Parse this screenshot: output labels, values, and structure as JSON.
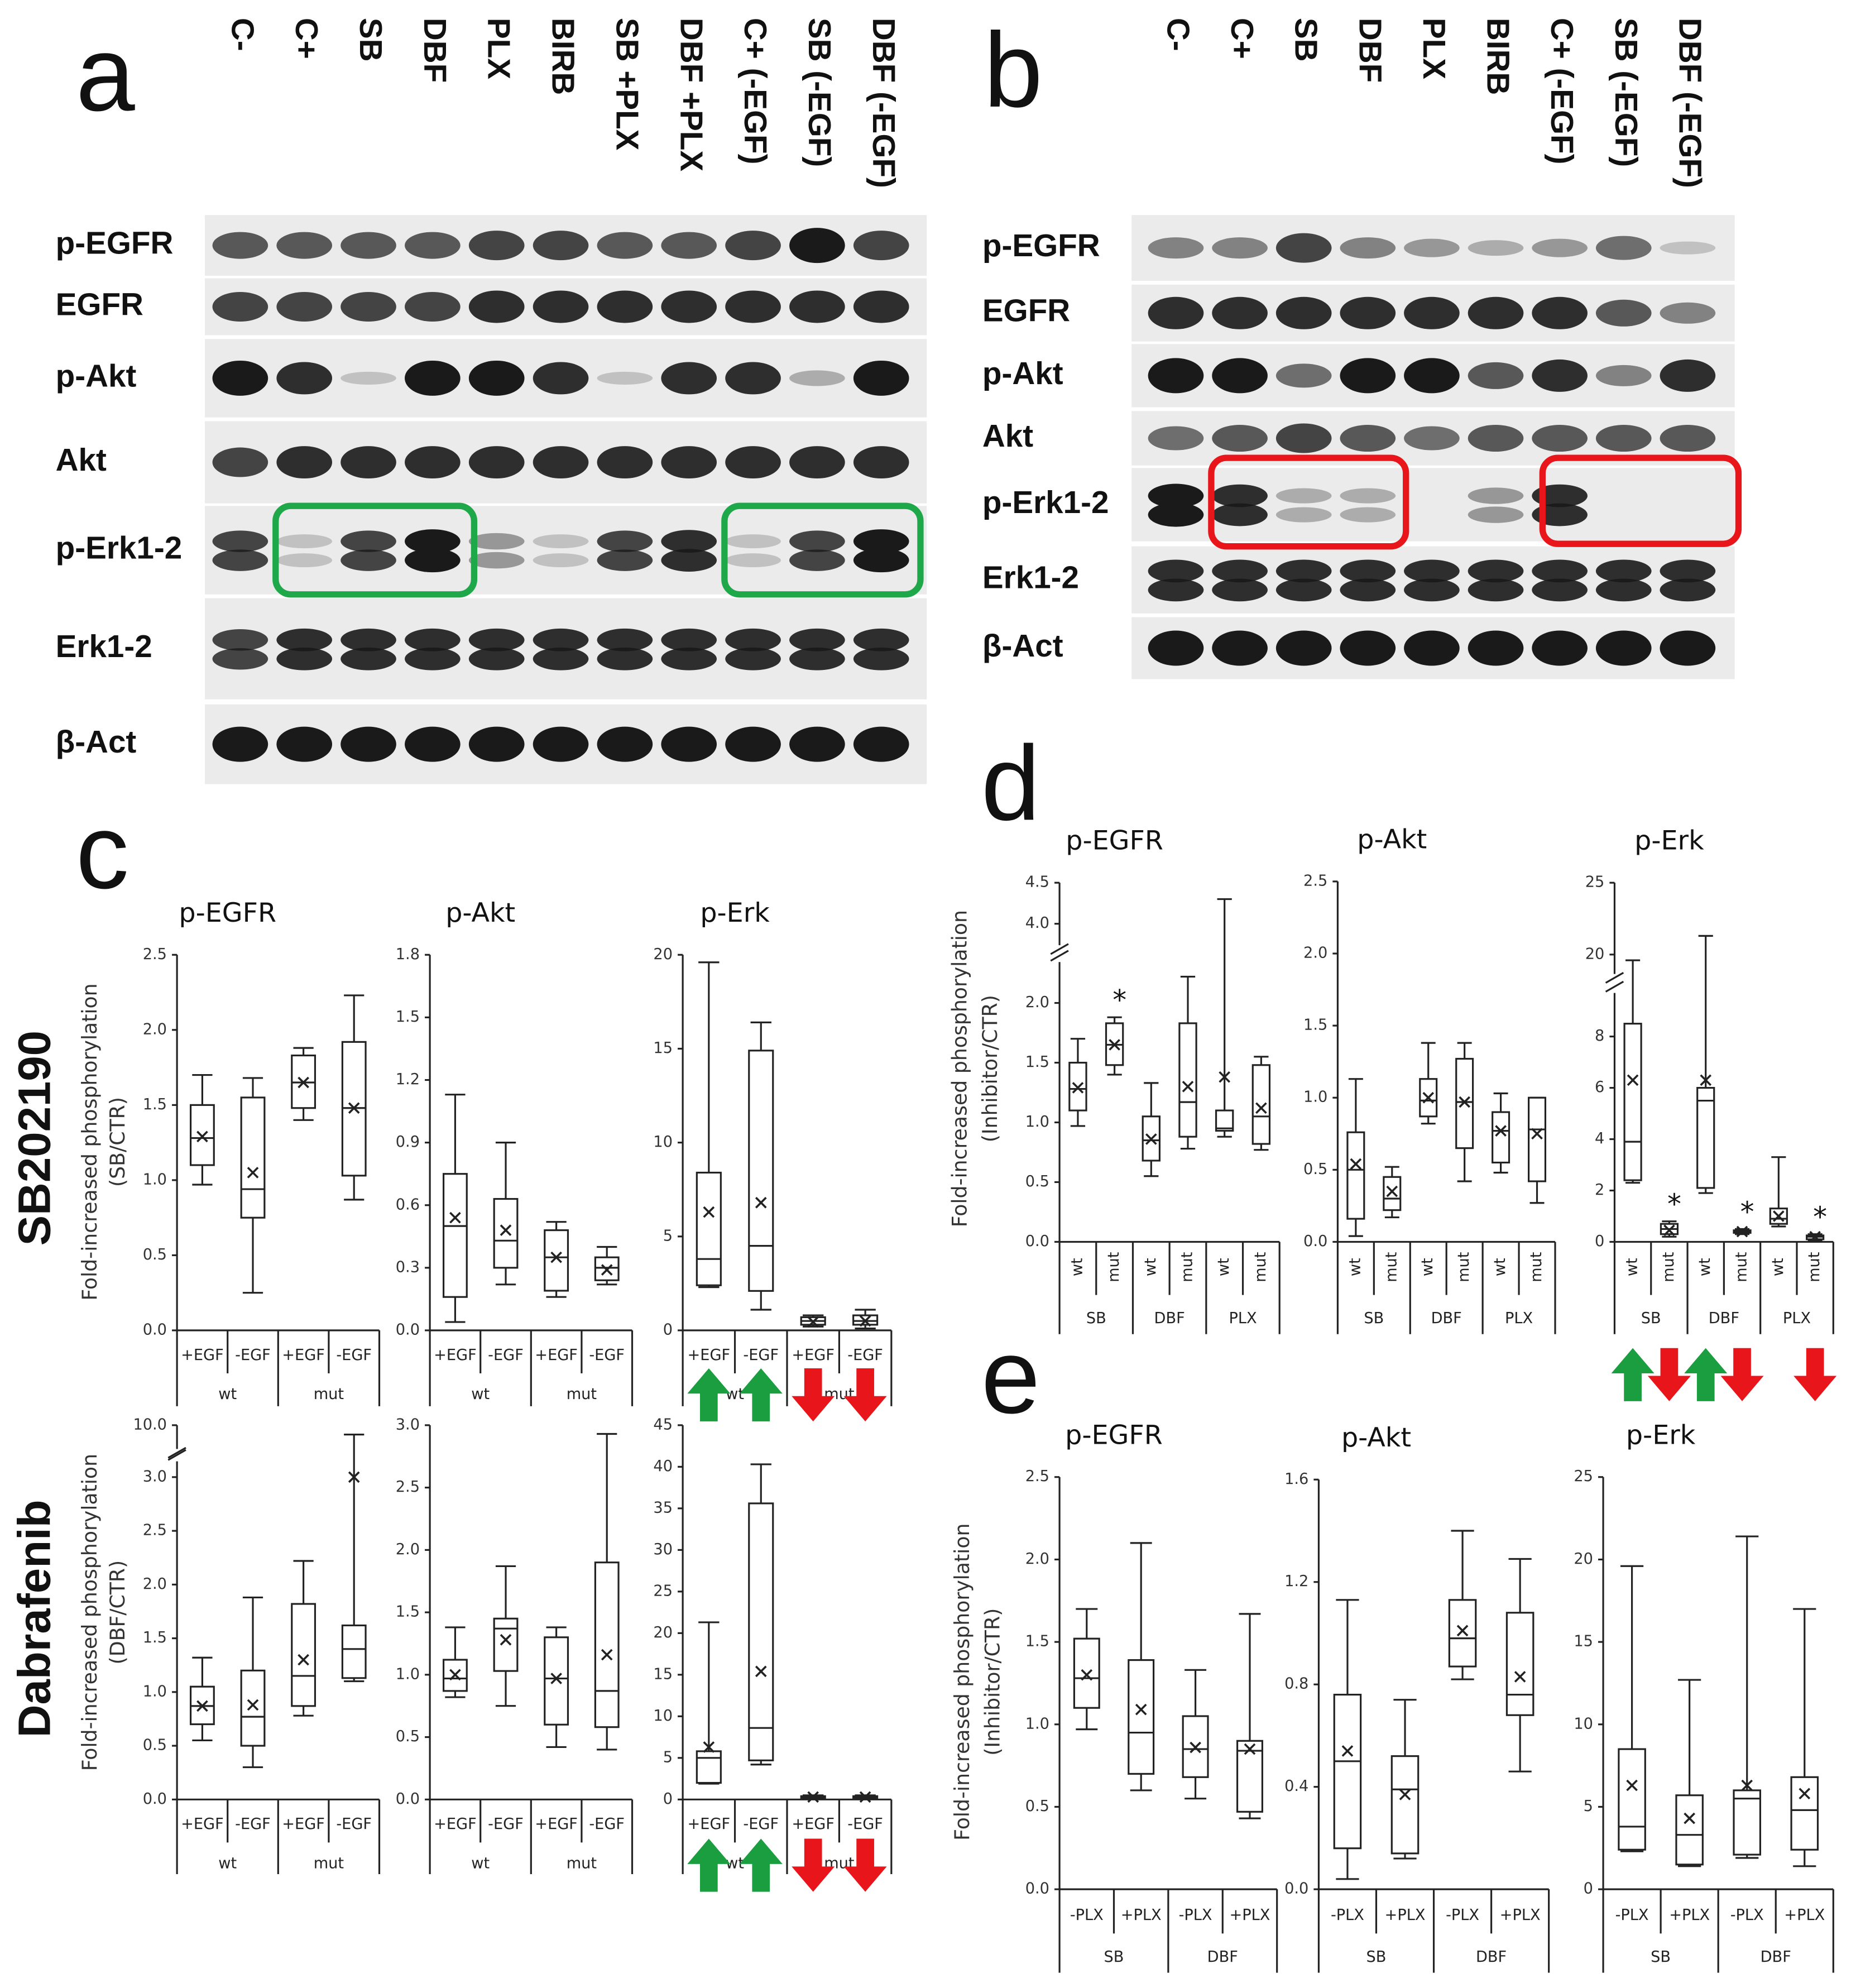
{
  "blots": [
    {
      "label": "a",
      "lanes": [
        "C-",
        "C+",
        "SB",
        "DBF",
        "PLX",
        "BIRB",
        "SB +PLX",
        "DBF +PLX",
        "C+ (-EGF)",
        "SB (-EGF)",
        "DBF (-EGF)"
      ],
      "rows": [
        "p-EGFR",
        "EGFR",
        "p-Akt",
        "Akt",
        "p-Erk1-2",
        "Erk1-2",
        "β-Act"
      ]
    },
    {
      "label": "b",
      "lanes": [
        "C-",
        "C+",
        "SB",
        "DBF",
        "PLX",
        "BIRB",
        "C+ (-EGF)",
        "SB (-EGF)",
        "DBF (-EGF)"
      ],
      "rows": [
        "p-EGFR",
        "EGFR",
        "p-Akt",
        "Akt",
        "p-Erk1-2",
        "Erk1-2",
        "β-Act"
      ]
    }
  ],
  "panels": [
    "c",
    "d",
    "e"
  ],
  "side_labels": [
    "SB202190",
    "Dabrafenib"
  ],
  "chart_data": [
    {
      "type": "box",
      "title": "p-EGFR",
      "ylabel": [
        "Fold-increased phosphorylation",
        "(SB/CTR)"
      ],
      "categories": [
        "+EGF",
        "-EGF",
        "+EGF",
        "-EGF"
      ],
      "groups": [
        "wt",
        "mut"
      ],
      "ylim": [
        0,
        2.5
      ],
      "yticks": [
        {
          "value": 0,
          "label": "0.0"
        },
        0.5,
        {
          "value": 1,
          "label": "1.0"
        },
        1.5,
        {
          "value": 2,
          "label": "2.0"
        },
        2.5
      ],
      "boxes": [
        {
          "min": 0.97,
          "q1": 1.1,
          "median": 1.28,
          "q3": 1.5,
          "max": 1.7,
          "mean": 1.29
        },
        {
          "min": 0.25,
          "q1": 0.75,
          "median": 0.94,
          "q3": 1.55,
          "max": 1.68,
          "mean": 1.05
        },
        {
          "min": 1.4,
          "q1": 1.48,
          "median": 1.65,
          "q3": 1.83,
          "max": 1.88,
          "mean": 1.65
        },
        {
          "min": 0.87,
          "q1": 1.03,
          "median": 1.48,
          "q3": 1.92,
          "max": 2.23,
          "mean": 1.48
        }
      ]
    },
    {
      "type": "box",
      "title": "p-Akt",
      "categories": [
        "+EGF",
        "-EGF",
        "+EGF",
        "-EGF"
      ],
      "groups": [
        "wt",
        "mut"
      ],
      "ylim": [
        0,
        1.8
      ],
      "yticks": [
        {
          "value": 0,
          "label": "0.0"
        },
        0.3,
        0.6,
        0.9,
        1.2,
        1.5,
        1.8
      ],
      "boxes": [
        {
          "min": 0.04,
          "q1": 0.16,
          "median": 0.5,
          "q3": 0.75,
          "max": 1.13,
          "mean": 0.54
        },
        {
          "min": 0.22,
          "q1": 0.3,
          "median": 0.43,
          "q3": 0.63,
          "max": 0.9,
          "mean": 0.48
        },
        {
          "min": 0.16,
          "q1": 0.19,
          "median": 0.35,
          "q3": 0.48,
          "max": 0.52,
          "mean": 0.35
        },
        {
          "min": 0.22,
          "q1": 0.24,
          "median": 0.3,
          "q3": 0.35,
          "max": 0.4,
          "mean": 0.29
        }
      ]
    },
    {
      "type": "box",
      "title": "p-Erk",
      "categories": [
        "+EGF",
        "-EGF",
        "+EGF",
        "-EGF"
      ],
      "groups": [
        "wt",
        "mut"
      ],
      "ylim": [
        0,
        20
      ],
      "yticks": [
        0,
        5,
        10,
        15,
        20
      ],
      "boxes": [
        {
          "min": 2.3,
          "q1": 2.4,
          "median": 3.8,
          "q3": 8.4,
          "max": 19.6,
          "mean": 6.3
        },
        {
          "min": 1.1,
          "q1": 2.1,
          "median": 4.5,
          "q3": 14.9,
          "max": 16.4,
          "mean": 6.8
        },
        {
          "min": 0.2,
          "q1": 0.3,
          "median": 0.5,
          "q3": 0.7,
          "max": 0.8,
          "mean": 0.45
        },
        {
          "min": 0.1,
          "q1": 0.3,
          "median": 0.5,
          "q3": 0.8,
          "max": 1.1,
          "mean": 0.5
        }
      ]
    },
    {
      "type": "box",
      "ylabel": [
        "Fold-increased phosphorylation",
        "(DBF/CTR)"
      ],
      "categories": [
        "+EGF",
        "-EGF",
        "+EGF",
        "-EGF"
      ],
      "groups": [
        "wt",
        "mut"
      ],
      "ylim": [
        0,
        10
      ],
      "ybreak": [
        3.1,
        9.6
      ],
      "yticks": [
        {
          "value": 0,
          "label": "0.0"
        },
        0.5,
        {
          "value": 1,
          "label": "1.0"
        },
        1.5,
        {
          "value": 2,
          "label": "2.0"
        },
        2.5,
        {
          "value": 3,
          "label": "3.0"
        },
        {
          "value": 10,
          "label": "10.0"
        }
      ],
      "boxes": [
        {
          "min": 0.55,
          "q1": 0.7,
          "median": 0.87,
          "q3": 1.05,
          "max": 1.32,
          "mean": 0.87
        },
        {
          "min": 0.3,
          "q1": 0.5,
          "median": 0.77,
          "q3": 1.2,
          "max": 1.88,
          "mean": 0.88
        },
        {
          "min": 0.78,
          "q1": 0.87,
          "median": 1.15,
          "q3": 1.82,
          "max": 2.22,
          "mean": 1.3
        },
        {
          "min": 1.1,
          "q1": 1.13,
          "median": 1.4,
          "q3": 1.62,
          "max": 9.8,
          "mean": 3.0
        }
      ]
    },
    {
      "type": "box",
      "categories": [
        "+EGF",
        "-EGF",
        "+EGF",
        "-EGF"
      ],
      "groups": [
        "wt",
        "mut"
      ],
      "ylim": [
        0,
        3
      ],
      "yticks": [
        {
          "value": 0,
          "label": "0.0"
        },
        0.5,
        {
          "value": 1,
          "label": "1.0"
        },
        1.5,
        {
          "value": 2,
          "label": "2.0"
        },
        2.5,
        {
          "value": 3,
          "label": "3.0"
        }
      ],
      "boxes": [
        {
          "min": 0.82,
          "q1": 0.87,
          "median": 0.97,
          "q3": 1.12,
          "max": 1.38,
          "mean": 1.0
        },
        {
          "min": 0.75,
          "q1": 1.03,
          "median": 1.37,
          "q3": 1.45,
          "max": 1.87,
          "mean": 1.28
        },
        {
          "min": 0.42,
          "q1": 0.6,
          "median": 0.97,
          "q3": 1.3,
          "max": 1.38,
          "mean": 0.97
        },
        {
          "min": 0.4,
          "q1": 0.58,
          "median": 0.87,
          "q3": 1.9,
          "max": 2.93,
          "mean": 1.16
        }
      ]
    },
    {
      "type": "box",
      "categories": [
        "+EGF",
        "-EGF",
        "+EGF",
        "-EGF"
      ],
      "groups": [
        "wt",
        "mut"
      ],
      "ylim": [
        0,
        45
      ],
      "yticks": [
        0,
        5,
        10,
        15,
        20,
        25,
        30,
        35,
        40,
        45
      ],
      "boxes": [
        {
          "min": 1.9,
          "q1": 2.0,
          "median": 5.0,
          "q3": 5.8,
          "max": 21.3,
          "mean": 6.3
        },
        {
          "min": 4.2,
          "q1": 4.7,
          "median": 8.6,
          "q3": 35.6,
          "max": 40.3,
          "mean": 15.4
        },
        {
          "min": 0.1,
          "q1": 0.2,
          "median": 0.3,
          "q3": 0.4,
          "max": 0.5,
          "mean": 0.3
        },
        {
          "min": 0.1,
          "q1": 0.2,
          "median": 0.3,
          "q3": 0.4,
          "max": 0.5,
          "mean": 0.3
        }
      ]
    },
    {
      "type": "box",
      "title": "p-EGFR",
      "ylabel": [
        "Fold-increased phosphorylation",
        "(Inhibitor/CTR)"
      ],
      "categories": [
        "wt",
        "mut",
        "wt",
        "mut",
        "wt",
        "mut"
      ],
      "groups": [
        "SB",
        "DBF",
        "PLX"
      ],
      "ylim": [
        0,
        4.5
      ],
      "ybreak": [
        2.3,
        3.8
      ],
      "yticks": [
        {
          "value": 0,
          "label": "0.0"
        },
        0.5,
        {
          "value": 1,
          "label": "1.0"
        },
        1.5,
        {
          "value": 2,
          "label": "2.0"
        },
        {
          "value": 4,
          "label": "4.0"
        },
        4.5
      ],
      "boxes": [
        {
          "min": 0.97,
          "q1": 1.1,
          "median": 1.28,
          "q3": 1.5,
          "max": 1.7,
          "mean": 1.29
        },
        {
          "min": 1.4,
          "q1": 1.48,
          "median": 1.65,
          "q3": 1.83,
          "max": 1.88,
          "mean": 1.65,
          "note": "*"
        },
        {
          "min": 0.55,
          "q1": 0.68,
          "median": 0.85,
          "q3": 1.05,
          "max": 1.33,
          "mean": 0.86
        },
        {
          "min": 0.78,
          "q1": 0.88,
          "median": 1.17,
          "q3": 1.83,
          "max": 2.22,
          "mean": 1.3
        },
        {
          "min": 0.88,
          "q1": 0.93,
          "median": 0.95,
          "q3": 1.1,
          "max": 4.3,
          "mean": 1.38
        },
        {
          "min": 0.77,
          "q1": 0.82,
          "median": 1.05,
          "q3": 1.48,
          "max": 1.55,
          "mean": 1.12
        }
      ]
    },
    {
      "type": "box",
      "title": "p-Akt",
      "categories": [
        "wt",
        "mut",
        "wt",
        "mut",
        "wt",
        "mut"
      ],
      "groups": [
        "SB",
        "DBF",
        "PLX"
      ],
      "ylim": [
        0,
        2.5
      ],
      "yticks": [
        {
          "value": 0,
          "label": "0.0"
        },
        0.5,
        {
          "value": 1,
          "label": "1.0"
        },
        1.5,
        {
          "value": 2,
          "label": "2.0"
        },
        2.5
      ],
      "boxes": [
        {
          "min": 0.04,
          "q1": 0.16,
          "median": 0.5,
          "q3": 0.76,
          "max": 1.13,
          "mean": 0.54
        },
        {
          "min": 0.17,
          "q1": 0.22,
          "median": 0.3,
          "q3": 0.45,
          "max": 0.52,
          "mean": 0.35
        },
        {
          "min": 0.82,
          "q1": 0.87,
          "median": 0.98,
          "q3": 1.13,
          "max": 1.38,
          "mean": 1.0
        },
        {
          "min": 0.42,
          "q1": 0.65,
          "median": 0.97,
          "q3": 1.27,
          "max": 1.38,
          "mean": 0.97
        },
        {
          "min": 0.48,
          "q1": 0.55,
          "median": 0.77,
          "q3": 0.9,
          "max": 1.03,
          "mean": 0.77
        },
        {
          "min": 0.27,
          "q1": 0.42,
          "median": 0.78,
          "q3": 1.0,
          "max": 1.0,
          "mean": 0.75
        }
      ]
    },
    {
      "type": "box",
      "title": "p-Erk",
      "categories": [
        "wt",
        "mut",
        "wt",
        "mut",
        "wt",
        "mut"
      ],
      "groups": [
        "SB",
        "DBF",
        "PLX"
      ],
      "ylim": [
        0,
        25
      ],
      "ybreak": [
        9.5,
        19
      ],
      "yticks": [
        0,
        2,
        4,
        6,
        8,
        20,
        25
      ],
      "boxes": [
        {
          "min": 2.3,
          "q1": 2.4,
          "median": 3.9,
          "q3": 8.5,
          "max": 19.6,
          "mean": 6.3
        },
        {
          "min": 0.2,
          "q1": 0.3,
          "median": 0.5,
          "q3": 0.7,
          "max": 0.8,
          "mean": 0.45,
          "note": "*"
        },
        {
          "min": 1.9,
          "q1": 2.1,
          "median": 5.5,
          "q3": 6.0,
          "max": 21.3,
          "mean": 6.3
        },
        {
          "min": 0.3,
          "q1": 0.35,
          "median": 0.4,
          "q3": 0.45,
          "max": 0.5,
          "mean": 0.4,
          "note": "*"
        },
        {
          "min": 0.6,
          "q1": 0.7,
          "median": 0.9,
          "q3": 1.3,
          "max": 3.3,
          "mean": 1.0
        },
        {
          "min": 0.05,
          "q1": 0.1,
          "median": 0.2,
          "q3": 0.25,
          "max": 0.3,
          "mean": 0.2,
          "note": "*"
        }
      ]
    },
    {
      "type": "box",
      "title": "p-EGFR",
      "ylabel": [
        "Fold-increased phosphorylation",
        "(Inhibitor/CTR)"
      ],
      "categories": [
        "-PLX",
        "+PLX",
        "-PLX",
        "+PLX"
      ],
      "groups": [
        "SB",
        "DBF"
      ],
      "ylim": [
        0,
        2.5
      ],
      "yticks": [
        {
          "value": 0,
          "label": "0.0"
        },
        0.5,
        {
          "value": 1,
          "label": "1.0"
        },
        1.5,
        {
          "value": 2,
          "label": "2.0"
        },
        2.5
      ],
      "boxes": [
        {
          "min": 0.97,
          "q1": 1.1,
          "median": 1.28,
          "q3": 1.52,
          "max": 1.7,
          "mean": 1.3
        },
        {
          "min": 0.6,
          "q1": 0.7,
          "median": 0.95,
          "q3": 1.39,
          "max": 2.1,
          "mean": 1.09
        },
        {
          "min": 0.55,
          "q1": 0.68,
          "median": 0.85,
          "q3": 1.05,
          "max": 1.33,
          "mean": 0.86
        },
        {
          "min": 0.43,
          "q1": 0.47,
          "median": 0.84,
          "q3": 0.9,
          "max": 1.67,
          "mean": 0.85
        }
      ]
    },
    {
      "type": "box",
      "title": "p-Akt",
      "categories": [
        "-PLX",
        "+PLX",
        "-PLX",
        "+PLX"
      ],
      "groups": [
        "SB",
        "DBF"
      ],
      "ylim": [
        0,
        1.6
      ],
      "yticks": [
        {
          "value": 0,
          "label": "0.0"
        },
        0.4,
        0.8,
        1.2,
        1.6
      ],
      "boxes": [
        {
          "min": 0.04,
          "q1": 0.16,
          "median": 0.5,
          "q3": 0.76,
          "max": 1.13,
          "mean": 0.54
        },
        {
          "min": 0.12,
          "q1": 0.14,
          "median": 0.39,
          "q3": 0.52,
          "max": 0.74,
          "mean": 0.37
        },
        {
          "min": 0.82,
          "q1": 0.87,
          "median": 0.98,
          "q3": 1.13,
          "max": 1.4,
          "mean": 1.01
        },
        {
          "min": 0.46,
          "q1": 0.68,
          "median": 0.76,
          "q3": 1.08,
          "max": 1.29,
          "mean": 0.83
        }
      ]
    },
    {
      "type": "box",
      "title": "p-Erk",
      "categories": [
        "-PLX",
        "+PLX",
        "-PLX",
        "+PLX"
      ],
      "groups": [
        "SB",
        "DBF"
      ],
      "ylim": [
        0,
        25
      ],
      "yticks": [
        0,
        5,
        10,
        15,
        20,
        25
      ],
      "boxes": [
        {
          "min": 2.3,
          "q1": 2.4,
          "median": 3.8,
          "q3": 8.5,
          "max": 19.6,
          "mean": 6.3
        },
        {
          "min": 1.4,
          "q1": 1.5,
          "median": 3.3,
          "q3": 5.7,
          "max": 12.7,
          "mean": 4.3
        },
        {
          "min": 1.9,
          "q1": 2.1,
          "median": 5.5,
          "q3": 6.0,
          "max": 21.4,
          "mean": 6.3
        },
        {
          "min": 1.4,
          "q1": 2.4,
          "median": 4.8,
          "q3": 6.8,
          "max": 17.0,
          "mean": 5.8
        }
      ]
    }
  ]
}
